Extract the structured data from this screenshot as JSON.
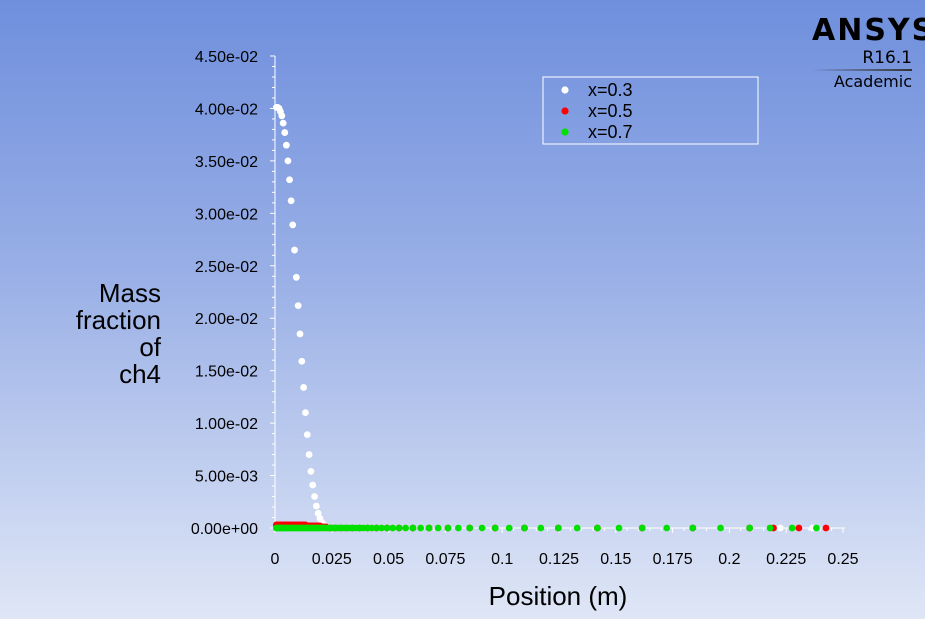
{
  "logo": {
    "brand": "ANSYS",
    "version": "R16.1",
    "edition": "Academic"
  },
  "chart_data": {
    "type": "scatter",
    "title": "",
    "ylabel_lines": [
      "Mass",
      "fraction",
      "of",
      "ch4"
    ],
    "xlabel": "Position (m)",
    "xlim": [
      0,
      0.25
    ],
    "ylim": [
      0,
      0.045
    ],
    "x_ticks": [
      0,
      0.025,
      0.05,
      0.075,
      0.1,
      0.125,
      0.15,
      0.175,
      0.2,
      0.225,
      0.25
    ],
    "x_tick_labels": [
      "0",
      "0.025",
      "0.05",
      "0.075",
      "0.1",
      "0.125",
      "0.15",
      "0.175",
      "0.2",
      "0.225",
      "0.25"
    ],
    "y_ticks": [
      0,
      0.005,
      0.01,
      0.015,
      0.02,
      0.025,
      0.03,
      0.035,
      0.04,
      0.045
    ],
    "y_tick_labels": [
      "0.00e+00",
      "5.00e-03",
      "1.00e-02",
      "1.50e-02",
      "2.00e-02",
      "2.50e-02",
      "3.00e-02",
      "3.50e-02",
      "4.00e-02",
      "4.50e-02"
    ],
    "grid": false,
    "legend_position": "top-right",
    "series": [
      {
        "name": "x=0.3",
        "color": "#ffffff",
        "points": [
          [
            0.0006,
            0.0401
          ],
          [
            0.0012,
            0.0401
          ],
          [
            0.0018,
            0.04
          ],
          [
            0.0024,
            0.0397
          ],
          [
            0.003,
            0.0393
          ],
          [
            0.0036,
            0.0386
          ],
          [
            0.0043,
            0.0377
          ],
          [
            0.005,
            0.0365
          ],
          [
            0.0057,
            0.035
          ],
          [
            0.0064,
            0.0332
          ],
          [
            0.0071,
            0.0312
          ],
          [
            0.0078,
            0.0289
          ],
          [
            0.0086,
            0.0265
          ],
          [
            0.0094,
            0.0239
          ],
          [
            0.0102,
            0.0212
          ],
          [
            0.011,
            0.0185
          ],
          [
            0.0118,
            0.0159
          ],
          [
            0.0126,
            0.0134
          ],
          [
            0.0134,
            0.011
          ],
          [
            0.0142,
            0.0089
          ],
          [
            0.015,
            0.007
          ],
          [
            0.0158,
            0.0054
          ],
          [
            0.0166,
            0.0041
          ],
          [
            0.0174,
            0.003
          ],
          [
            0.0182,
            0.0021
          ],
          [
            0.019,
            0.0014
          ],
          [
            0.0198,
            0.0009
          ],
          [
            0.0207,
            0.0005
          ],
          [
            0.0216,
            0.0003
          ],
          [
            0.0225,
            0.0001
          ],
          [
            0.0235,
            5e-05
          ],
          [
            0.0245,
            0.0
          ],
          [
            0.0255,
            0.0
          ],
          [
            0.0266,
            0.0
          ],
          [
            0.0277,
            0.0
          ],
          [
            0.0289,
            0.0
          ],
          [
            0.0301,
            0.0
          ],
          [
            0.0314,
            0.0
          ],
          [
            0.0327,
            0.0
          ],
          [
            0.0341,
            0.0
          ],
          [
            0.0356,
            0.0
          ],
          [
            0.0372,
            0.0
          ],
          [
            0.0389,
            0.0
          ],
          [
            0.0407,
            0.0
          ],
          [
            0.0426,
            0.0
          ],
          [
            0.0447,
            0.0
          ],
          [
            0.0469,
            0.0
          ],
          [
            0.0493,
            0.0
          ],
          [
            0.0518,
            0.0
          ],
          [
            0.0546,
            0.0
          ],
          [
            0.0575,
            0.0
          ],
          [
            0.0607,
            0.0
          ],
          [
            0.0641,
            0.0
          ],
          [
            0.0678,
            0.0
          ],
          [
            0.0718,
            0.0
          ],
          [
            0.0761,
            0.0
          ],
          [
            0.0807,
            0.0
          ],
          [
            0.0857,
            0.0
          ],
          [
            0.0911,
            0.0
          ],
          [
            0.0969,
            0.0
          ],
          [
            0.1031,
            0.0
          ],
          [
            0.1098,
            0.0
          ],
          [
            0.117,
            0.0
          ],
          [
            0.1247,
            0.0
          ],
          [
            0.133,
            0.0
          ],
          [
            0.1419,
            0.0
          ],
          [
            0.1514,
            0.0
          ],
          [
            0.1616,
            0.0
          ],
          [
            0.1724,
            0.0
          ],
          [
            0.1839,
            0.0
          ],
          [
            0.1961,
            0.0
          ],
          [
            0.2089,
            0.0
          ],
          [
            0.2224,
            0.0
          ],
          [
            0.2366,
            0.0
          ]
        ]
      },
      {
        "name": "x=0.5",
        "color": "#ff0000",
        "points": [
          [
            0.0006,
            0.0003
          ],
          [
            0.0012,
            0.0003
          ],
          [
            0.0018,
            0.0003
          ],
          [
            0.0024,
            0.0003
          ],
          [
            0.003,
            0.0003
          ],
          [
            0.0036,
            0.0003
          ],
          [
            0.0043,
            0.0003
          ],
          [
            0.005,
            0.0003
          ],
          [
            0.0057,
            0.0003
          ],
          [
            0.0064,
            0.0003
          ],
          [
            0.0071,
            0.0003
          ],
          [
            0.0078,
            0.0003
          ],
          [
            0.0086,
            0.0003
          ],
          [
            0.0094,
            0.0003
          ],
          [
            0.0102,
            0.0003
          ],
          [
            0.011,
            0.0003
          ],
          [
            0.0118,
            0.0003
          ],
          [
            0.0126,
            0.0003
          ],
          [
            0.0134,
            0.0003
          ],
          [
            0.0142,
            0.0002
          ],
          [
            0.015,
            0.0002
          ],
          [
            0.0158,
            0.0002
          ],
          [
            0.0166,
            0.0002
          ],
          [
            0.0174,
            0.0002
          ],
          [
            0.0182,
            0.0002
          ],
          [
            0.019,
            0.0002
          ],
          [
            0.0198,
            0.0002
          ],
          [
            0.0207,
            0.0001
          ],
          [
            0.0216,
            0.0001
          ],
          [
            0.0225,
            0.0001
          ],
          [
            0.0245,
            0.0
          ],
          [
            0.0266,
            0.0
          ],
          [
            0.0289,
            0.0
          ],
          [
            0.0314,
            0.0
          ],
          [
            0.0341,
            0.0
          ],
          [
            0.0372,
            0.0
          ],
          [
            0.0407,
            0.0
          ],
          [
            0.0447,
            0.0
          ],
          [
            0.0493,
            0.0
          ],
          [
            0.0546,
            0.0
          ],
          [
            0.0607,
            0.0
          ],
          [
            0.0678,
            0.0
          ],
          [
            0.0761,
            0.0
          ],
          [
            0.0857,
            0.0
          ],
          [
            0.0969,
            0.0
          ],
          [
            0.1098,
            0.0
          ],
          [
            0.1247,
            0.0
          ],
          [
            0.1419,
            0.0
          ],
          [
            0.1616,
            0.0
          ],
          [
            0.1839,
            0.0
          ],
          [
            0.2089,
            0.0
          ],
          [
            0.2194,
            0.0
          ],
          [
            0.2306,
            0.0
          ],
          [
            0.2425,
            0.0
          ]
        ]
      },
      {
        "name": "x=0.7",
        "color": "#00e000",
        "points": [
          [
            0.0006,
            0.0
          ],
          [
            0.0012,
            0.0
          ],
          [
            0.0018,
            0.0
          ],
          [
            0.0024,
            0.0
          ],
          [
            0.003,
            0.0
          ],
          [
            0.0036,
            0.0
          ],
          [
            0.0043,
            0.0
          ],
          [
            0.005,
            0.0
          ],
          [
            0.0057,
            0.0
          ],
          [
            0.0064,
            0.0
          ],
          [
            0.0071,
            0.0
          ],
          [
            0.0078,
            0.0
          ],
          [
            0.0086,
            0.0
          ],
          [
            0.0094,
            0.0
          ],
          [
            0.0102,
            0.0
          ],
          [
            0.011,
            0.0
          ],
          [
            0.0118,
            0.0
          ],
          [
            0.0126,
            0.0
          ],
          [
            0.0134,
            0.0
          ],
          [
            0.0142,
            0.0
          ],
          [
            0.015,
            0.0
          ],
          [
            0.0158,
            0.0
          ],
          [
            0.0166,
            0.0
          ],
          [
            0.0174,
            0.0
          ],
          [
            0.0182,
            0.0
          ],
          [
            0.019,
            0.0
          ],
          [
            0.0198,
            0.0
          ],
          [
            0.0207,
            0.0
          ],
          [
            0.0216,
            0.0
          ],
          [
            0.0225,
            0.0
          ],
          [
            0.0235,
            0.0
          ],
          [
            0.0245,
            0.0
          ],
          [
            0.0255,
            0.0
          ],
          [
            0.0266,
            0.0
          ],
          [
            0.0277,
            0.0
          ],
          [
            0.0289,
            0.0
          ],
          [
            0.0301,
            0.0
          ],
          [
            0.0314,
            0.0
          ],
          [
            0.0327,
            0.0
          ],
          [
            0.0341,
            0.0
          ],
          [
            0.0356,
            0.0
          ],
          [
            0.0372,
            0.0
          ],
          [
            0.0389,
            0.0
          ],
          [
            0.0407,
            0.0
          ],
          [
            0.0426,
            0.0
          ],
          [
            0.0447,
            0.0
          ],
          [
            0.0469,
            0.0
          ],
          [
            0.0493,
            0.0
          ],
          [
            0.0518,
            0.0
          ],
          [
            0.0546,
            0.0
          ],
          [
            0.0575,
            0.0
          ],
          [
            0.0607,
            0.0
          ],
          [
            0.0641,
            0.0
          ],
          [
            0.0678,
            0.0
          ],
          [
            0.0718,
            0.0
          ],
          [
            0.0761,
            0.0
          ],
          [
            0.0807,
            0.0
          ],
          [
            0.0857,
            0.0
          ],
          [
            0.0911,
            0.0
          ],
          [
            0.0969,
            0.0
          ],
          [
            0.1031,
            0.0
          ],
          [
            0.1098,
            0.0
          ],
          [
            0.117,
            0.0
          ],
          [
            0.1247,
            0.0
          ],
          [
            0.133,
            0.0
          ],
          [
            0.1419,
            0.0
          ],
          [
            0.1514,
            0.0
          ],
          [
            0.1616,
            0.0
          ],
          [
            0.1724,
            0.0
          ],
          [
            0.1839,
            0.0
          ],
          [
            0.1961,
            0.0
          ],
          [
            0.2089,
            0.0
          ],
          [
            0.2179,
            0.0
          ],
          [
            0.2276,
            0.0
          ],
          [
            0.2383,
            0.0
          ]
        ]
      }
    ]
  }
}
